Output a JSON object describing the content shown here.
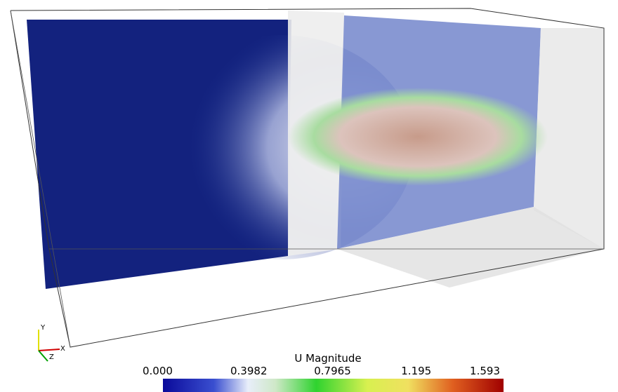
{
  "colorbar": {
    "title": "U Magnitude",
    "ticks": [
      "0.000",
      "0.3982",
      "0.7965",
      "1.195",
      "1.593"
    ]
  },
  "axes_triad": {
    "y": "Y",
    "x": "X",
    "z": "Z"
  }
}
